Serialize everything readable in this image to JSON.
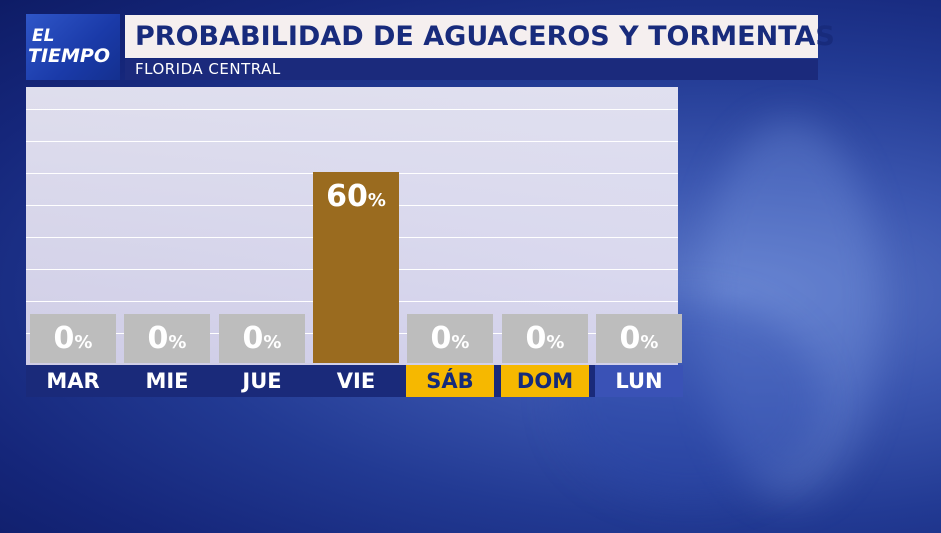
{
  "logo": {
    "line1": "EL",
    "line2": "TIEMPO"
  },
  "header": {
    "title": "PROBABILIDAD DE AGUACEROS Y TORMENTAS",
    "subtitle": "FLORIDA CENTRAL"
  },
  "colors": {
    "bar_zero": "#bdbdbd",
    "bar_active": "#9a6b1f",
    "weekend_bg": "#f6b800",
    "day_row_bg": "#1a2a7a"
  },
  "chart_data": {
    "type": "bar",
    "categories": [
      "MAR",
      "MIE",
      "JUE",
      "VIE",
      "SÁB",
      "DOM",
      "LUN"
    ],
    "values": [
      0,
      0,
      0,
      60,
      0,
      0,
      0
    ],
    "value_suffix": "%",
    "ylim": [
      0,
      100
    ],
    "weekend": [
      "SÁB",
      "DOM"
    ],
    "grid": true
  }
}
